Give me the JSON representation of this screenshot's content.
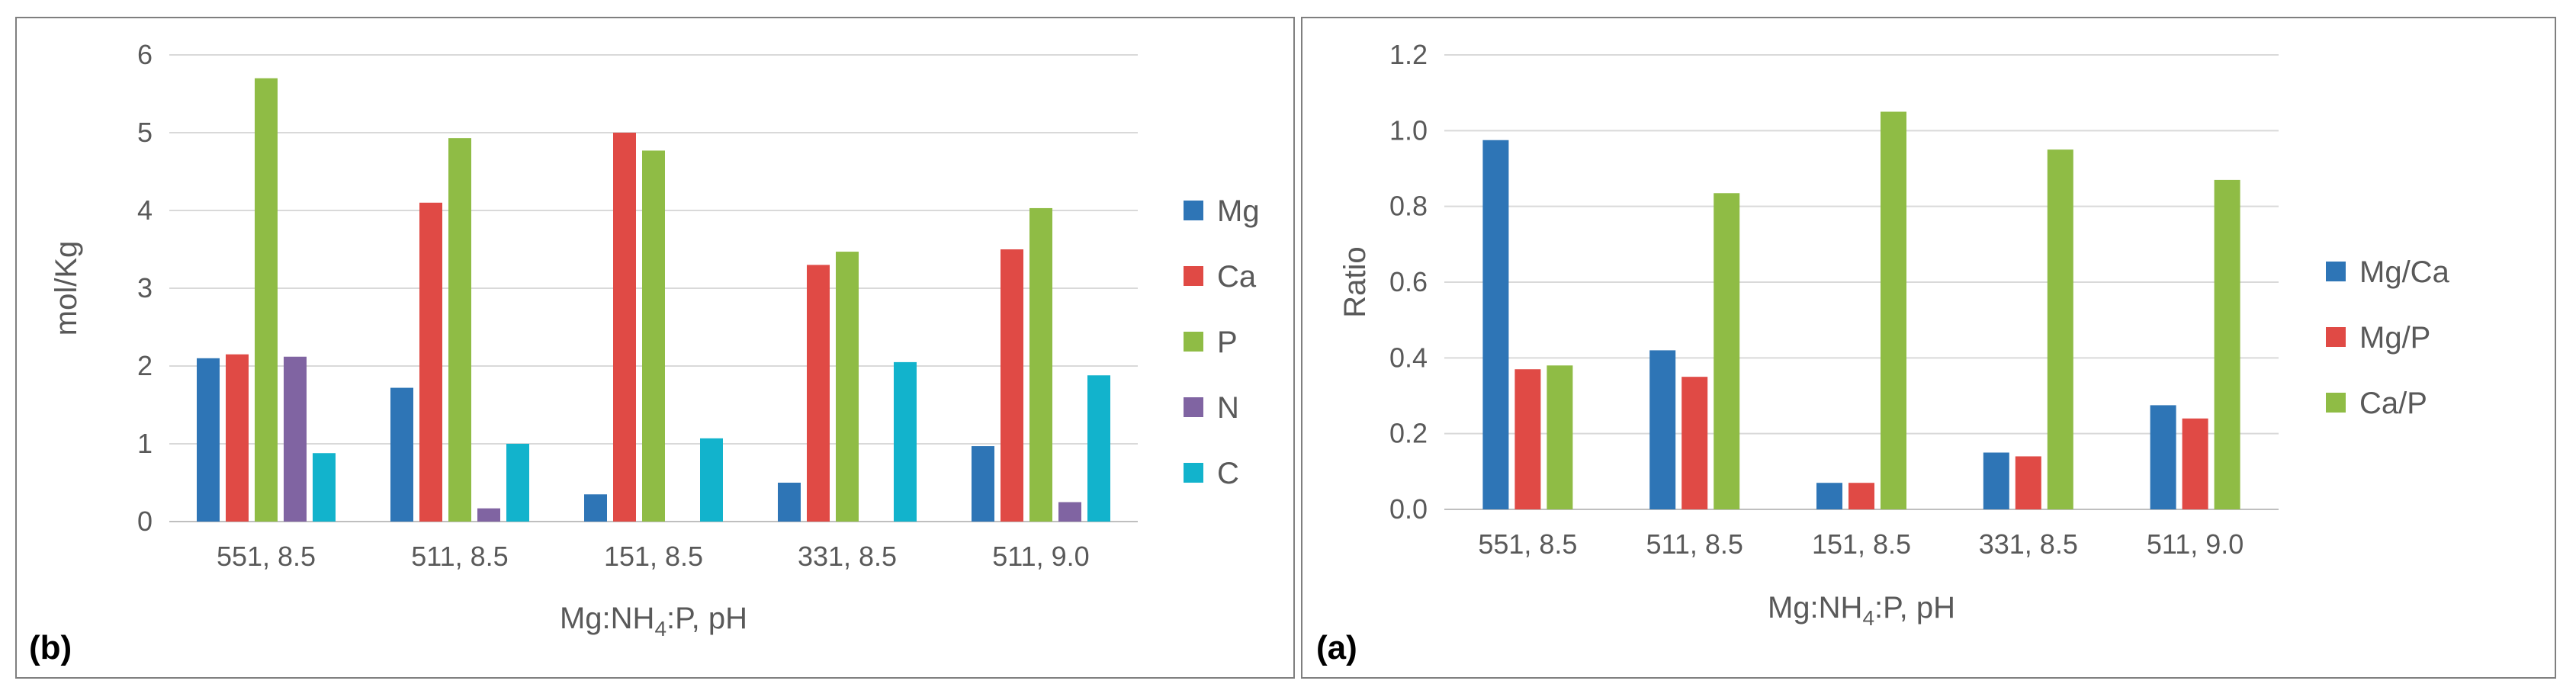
{
  "charts": [
    {
      "id": "b",
      "panel_label": "(b)",
      "chart_data": {
        "type": "bar",
        "title": "",
        "xlabel": "Mg:NH4:P, pH",
        "xlabel_parts": [
          "Mg:NH",
          "4",
          ":P, pH"
        ],
        "ylabel": "mol/Kg",
        "ylim": [
          0,
          6
        ],
        "yticks": [
          "0",
          "1",
          "2",
          "3",
          "4",
          "5",
          "6"
        ],
        "grid": true,
        "legend_position": "right",
        "categories": [
          "551, 8.5",
          "511, 8.5",
          "151, 8.5",
          "331, 8.5",
          "511, 9.0"
        ],
        "series": [
          {
            "name": "Mg",
            "color": "#2e75b6",
            "values": [
              2.1,
              1.72,
              0.35,
              0.5,
              0.97
            ]
          },
          {
            "name": "Ca",
            "color": "#e04a45",
            "values": [
              2.15,
              4.1,
              5.0,
              3.3,
              3.5
            ]
          },
          {
            "name": "P",
            "color": "#8fbc45",
            "values": [
              5.7,
              4.93,
              4.77,
              3.47,
              4.03
            ]
          },
          {
            "name": "N",
            "color": "#8064a2",
            "values": [
              2.12,
              0.17,
              0,
              0,
              0.25
            ]
          },
          {
            "name": "C",
            "color": "#12b3cc",
            "values": [
              0.88,
              1.0,
              1.07,
              2.05,
              1.88
            ]
          }
        ]
      }
    },
    {
      "id": "a",
      "panel_label": "(a)",
      "chart_data": {
        "type": "bar",
        "title": "",
        "xlabel": "Mg:NH4:P, pH",
        "xlabel_parts": [
          "Mg:NH",
          "4",
          ":P, pH"
        ],
        "ylabel": "Ratio",
        "ylim": [
          0,
          1.2
        ],
        "yticks": [
          "0.0",
          "0.2",
          "0.4",
          "0.6",
          "0.8",
          "1.0",
          "1.2"
        ],
        "grid": true,
        "legend_position": "right",
        "categories": [
          "551, 8.5",
          "511, 8.5",
          "151, 8.5",
          "331, 8.5",
          "511, 9.0"
        ],
        "series": [
          {
            "name": "Mg/Ca",
            "color": "#2e75b6",
            "values": [
              0.975,
              0.42,
              0.07,
              0.15,
              0.275
            ]
          },
          {
            "name": "Mg/P",
            "color": "#e04a45",
            "values": [
              0.37,
              0.35,
              0.07,
              0.14,
              0.24
            ]
          },
          {
            "name": "Ca/P",
            "color": "#8fbc45",
            "values": [
              0.38,
              0.835,
              1.05,
              0.95,
              0.87
            ]
          }
        ]
      }
    }
  ]
}
